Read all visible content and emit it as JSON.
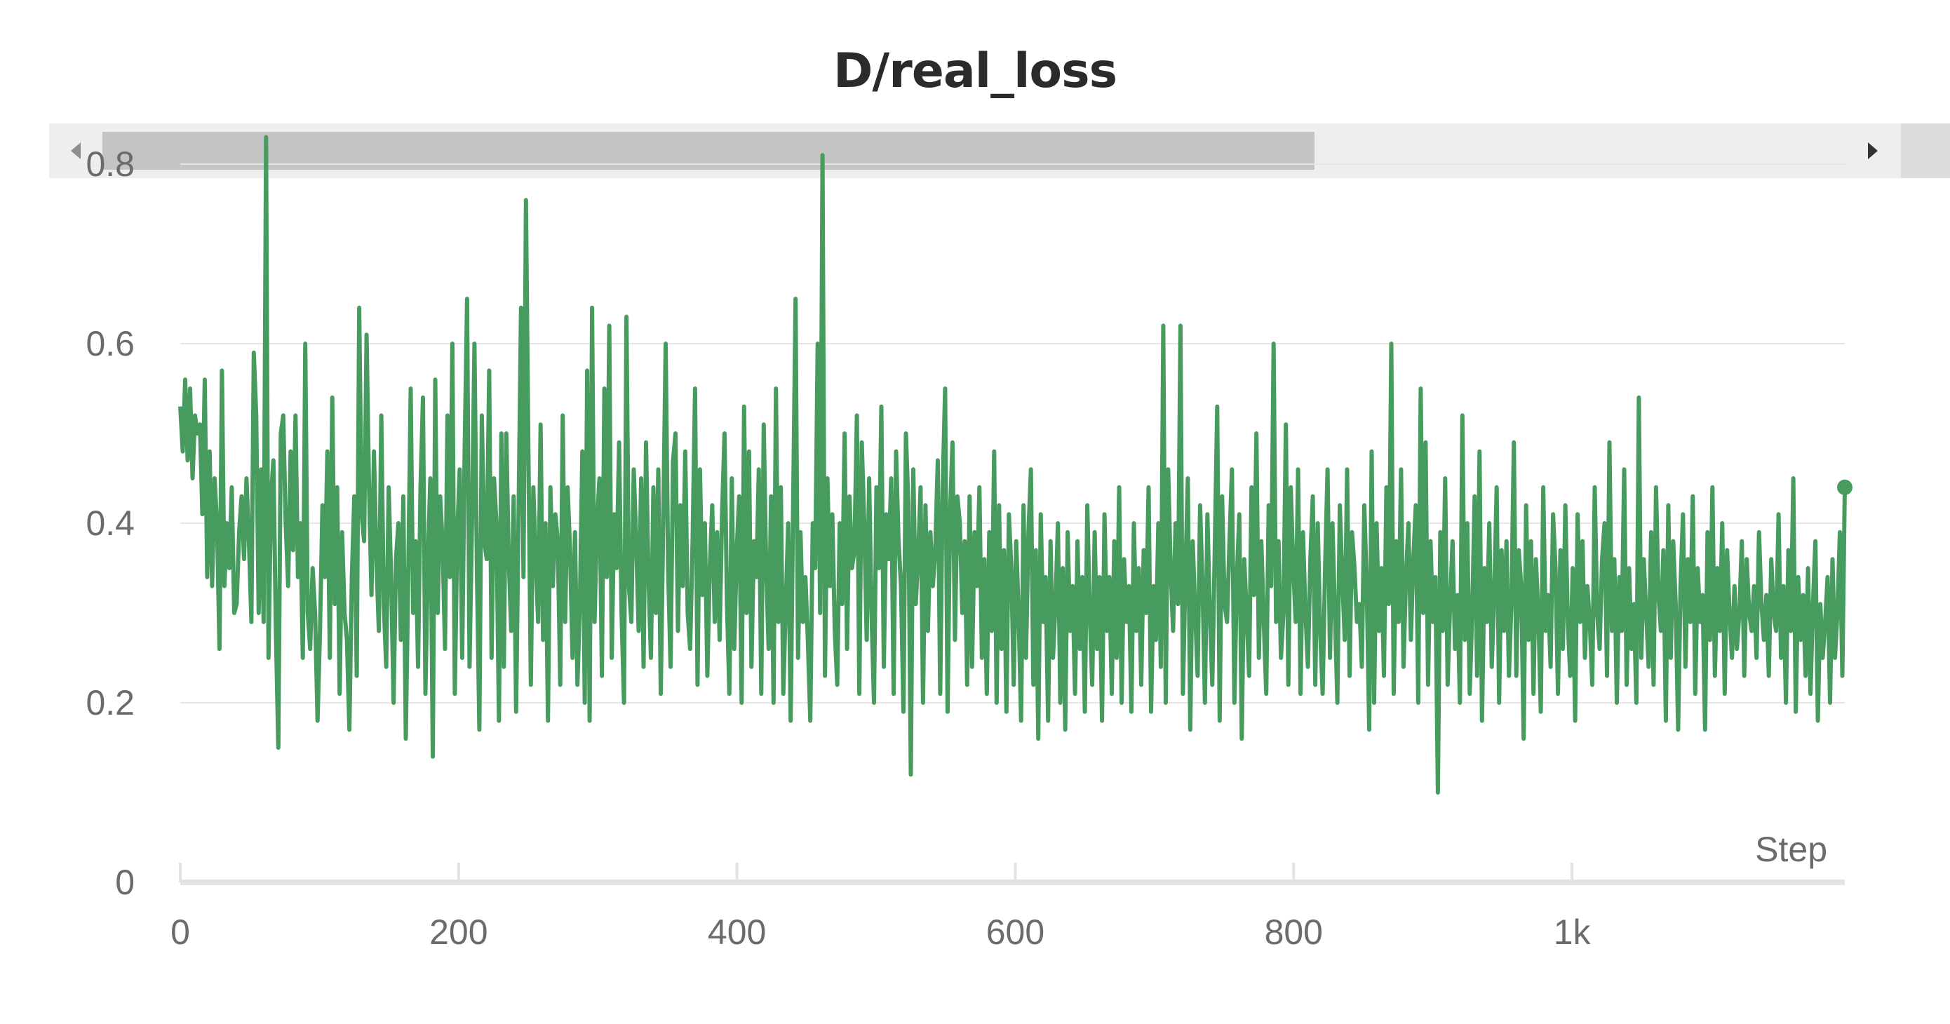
{
  "chart_data": {
    "type": "line",
    "title": "D/real_loss",
    "xlabel": "Step",
    "ylabel": "",
    "xlim": [
      0,
      1196
    ],
    "ylim": [
      0,
      0.85
    ],
    "x_ticks": [
      0,
      200,
      400,
      600,
      800,
      1000
    ],
    "x_tick_labels": [
      "0",
      "200",
      "400",
      "600",
      "800",
      "1k"
    ],
    "y_ticks": [
      0,
      0.2,
      0.4,
      0.6,
      0.8
    ],
    "y_tick_labels": [
      "0",
      "0.2",
      "0.4",
      "0.6",
      "0.8"
    ],
    "grid": true,
    "legend": "none",
    "line_color": "#479b5f",
    "series": [
      {
        "step": 2,
        "x_start": 0,
        "x_end": 1196,
        "values": [
          0.53,
          0.48,
          0.56,
          0.47,
          0.55,
          0.45,
          0.52,
          0.5,
          0.51,
          0.41,
          0.56,
          0.34,
          0.48,
          0.33,
          0.45,
          0.4,
          0.26,
          0.57,
          0.33,
          0.4,
          0.35,
          0.44,
          0.3,
          0.31,
          0.39,
          0.43,
          0.36,
          0.45,
          0.38,
          0.29,
          0.59,
          0.52,
          0.3,
          0.46,
          0.29,
          0.83,
          0.25,
          0.43,
          0.47,
          0.28,
          0.15,
          0.5,
          0.52,
          0.4,
          0.33,
          0.48,
          0.37,
          0.52,
          0.34,
          0.4,
          0.25,
          0.6,
          0.3,
          0.26,
          0.35,
          0.3,
          0.18,
          0.28,
          0.42,
          0.34,
          0.48,
          0.25,
          0.54,
          0.31,
          0.44,
          0.21,
          0.39,
          0.3,
          0.27,
          0.17,
          0.34,
          0.43,
          0.23,
          0.64,
          0.41,
          0.38,
          0.61,
          0.44,
          0.32,
          0.48,
          0.36,
          0.28,
          0.52,
          0.31,
          0.24,
          0.44,
          0.34,
          0.2,
          0.36,
          0.4,
          0.27,
          0.43,
          0.16,
          0.34,
          0.55,
          0.3,
          0.38,
          0.24,
          0.44,
          0.54,
          0.21,
          0.36,
          0.45,
          0.14,
          0.56,
          0.3,
          0.43,
          0.38,
          0.26,
          0.52,
          0.34,
          0.6,
          0.21,
          0.39,
          0.46,
          0.25,
          0.48,
          0.65,
          0.24,
          0.4,
          0.6,
          0.35,
          0.17,
          0.52,
          0.38,
          0.36,
          0.57,
          0.25,
          0.45,
          0.4,
          0.18,
          0.5,
          0.24,
          0.5,
          0.36,
          0.28,
          0.43,
          0.19,
          0.41,
          0.64,
          0.34,
          0.76,
          0.48,
          0.22,
          0.44,
          0.36,
          0.29,
          0.51,
          0.27,
          0.4,
          0.18,
          0.44,
          0.33,
          0.41,
          0.38,
          0.22,
          0.52,
          0.29,
          0.44,
          0.37,
          0.25,
          0.39,
          0.22,
          0.31,
          0.48,
          0.2,
          0.57,
          0.18,
          0.64,
          0.29,
          0.4,
          0.45,
          0.23,
          0.55,
          0.34,
          0.62,
          0.25,
          0.41,
          0.35,
          0.49,
          0.3,
          0.2,
          0.63,
          0.33,
          0.29,
          0.46,
          0.38,
          0.28,
          0.45,
          0.24,
          0.49,
          0.34,
          0.25,
          0.44,
          0.3,
          0.46,
          0.21,
          0.4,
          0.6,
          0.35,
          0.24,
          0.47,
          0.5,
          0.28,
          0.42,
          0.33,
          0.48,
          0.3,
          0.26,
          0.38,
          0.55,
          0.22,
          0.46,
          0.32,
          0.4,
          0.23,
          0.35,
          0.42,
          0.29,
          0.39,
          0.27,
          0.41,
          0.5,
          0.31,
          0.21,
          0.45,
          0.26,
          0.37,
          0.43,
          0.2,
          0.53,
          0.3,
          0.48,
          0.24,
          0.38,
          0.34,
          0.46,
          0.21,
          0.51,
          0.35,
          0.26,
          0.43,
          0.2,
          0.55,
          0.29,
          0.44,
          0.21,
          0.31,
          0.4,
          0.18,
          0.42,
          0.65,
          0.25,
          0.39,
          0.29,
          0.34,
          0.27,
          0.18,
          0.4,
          0.35,
          0.6,
          0.3,
          0.81,
          0.23,
          0.45,
          0.33,
          0.41,
          0.28,
          0.22,
          0.4,
          0.31,
          0.5,
          0.26,
          0.43,
          0.35,
          0.37,
          0.52,
          0.21,
          0.49,
          0.4,
          0.27,
          0.45,
          0.3,
          0.2,
          0.44,
          0.35,
          0.53,
          0.24,
          0.41,
          0.36,
          0.45,
          0.21,
          0.48,
          0.38,
          0.33,
          0.19,
          0.5,
          0.42,
          0.12,
          0.46,
          0.31,
          0.36,
          0.44,
          0.2,
          0.42,
          0.28,
          0.39,
          0.33,
          0.37,
          0.47,
          0.21,
          0.44,
          0.55,
          0.19,
          0.41,
          0.49,
          0.27,
          0.43,
          0.4,
          0.3,
          0.38,
          0.22,
          0.43,
          0.24,
          0.39,
          0.33,
          0.44,
          0.25,
          0.36,
          0.21,
          0.39,
          0.28,
          0.48,
          0.2,
          0.42,
          0.26,
          0.37,
          0.19,
          0.41,
          0.35,
          0.22,
          0.38,
          0.3,
          0.18,
          0.42,
          0.25,
          0.39,
          0.46,
          0.22,
          0.37,
          0.16,
          0.41,
          0.29,
          0.34,
          0.18,
          0.38,
          0.25,
          0.31,
          0.4,
          0.2,
          0.35,
          0.17,
          0.39,
          0.28,
          0.33,
          0.21,
          0.38,
          0.26,
          0.34,
          0.19,
          0.42,
          0.3,
          0.22,
          0.39,
          0.26,
          0.34,
          0.18,
          0.41,
          0.28,
          0.34,
          0.21,
          0.38,
          0.25,
          0.44,
          0.2,
          0.36,
          0.29,
          0.33,
          0.19,
          0.4,
          0.28,
          0.35,
          0.22,
          0.37,
          0.3,
          0.44,
          0.19,
          0.33,
          0.27,
          0.4,
          0.24,
          0.62,
          0.2,
          0.46,
          0.35,
          0.28,
          0.4,
          0.31,
          0.62,
          0.21,
          0.34,
          0.45,
          0.17,
          0.38,
          0.3,
          0.23,
          0.42,
          0.33,
          0.2,
          0.41,
          0.3,
          0.22,
          0.37,
          0.53,
          0.18,
          0.43,
          0.31,
          0.29,
          0.38,
          0.46,
          0.2,
          0.34,
          0.41,
          0.16,
          0.36,
          0.3,
          0.23,
          0.44,
          0.32,
          0.5,
          0.25,
          0.38,
          0.29,
          0.21,
          0.42,
          0.33,
          0.6,
          0.29,
          0.38,
          0.25,
          0.3,
          0.51,
          0.22,
          0.44,
          0.35,
          0.29,
          0.46,
          0.21,
          0.39,
          0.3,
          0.24,
          0.36,
          0.43,
          0.22,
          0.4,
          0.28,
          0.21,
          0.35,
          0.46,
          0.25,
          0.4,
          0.3,
          0.2,
          0.42,
          0.34,
          0.27,
          0.46,
          0.23,
          0.39,
          0.35,
          0.29,
          0.31,
          0.24,
          0.42,
          0.33,
          0.17,
          0.48,
          0.2,
          0.4,
          0.28,
          0.35,
          0.23,
          0.44,
          0.31,
          0.6,
          0.21,
          0.38,
          0.29,
          0.46,
          0.24,
          0.34,
          0.4,
          0.27,
          0.36,
          0.42,
          0.2,
          0.55,
          0.3,
          0.49,
          0.22,
          0.38,
          0.29,
          0.34,
          0.1,
          0.39,
          0.28,
          0.45,
          0.22,
          0.31,
          0.38,
          0.26,
          0.32,
          0.2,
          0.52,
          0.27,
          0.4,
          0.21,
          0.3,
          0.43,
          0.23,
          0.48,
          0.18,
          0.35,
          0.29,
          0.4,
          0.24,
          0.32,
          0.44,
          0.2,
          0.37,
          0.28,
          0.38,
          0.23,
          0.31,
          0.49,
          0.23,
          0.37,
          0.33,
          0.16,
          0.42,
          0.27,
          0.38,
          0.21,
          0.36,
          0.3,
          0.19,
          0.44,
          0.28,
          0.32,
          0.24,
          0.41,
          0.35,
          0.21,
          0.37,
          0.26,
          0.42,
          0.29,
          0.23,
          0.35,
          0.18,
          0.41,
          0.29,
          0.38,
          0.25,
          0.33,
          0.29,
          0.22,
          0.44,
          0.3,
          0.26,
          0.36,
          0.4,
          0.23,
          0.49,
          0.28,
          0.36,
          0.2,
          0.34,
          0.28,
          0.46,
          0.22,
          0.35,
          0.26,
          0.31,
          0.2,
          0.54,
          0.25,
          0.36,
          0.3,
          0.24,
          0.39,
          0.22,
          0.44,
          0.32,
          0.28,
          0.37,
          0.18,
          0.42,
          0.25,
          0.38,
          0.31,
          0.17,
          0.33,
          0.41,
          0.24,
          0.36,
          0.29,
          0.43,
          0.21,
          0.35,
          0.29,
          0.32,
          0.17,
          0.39,
          0.27,
          0.44,
          0.23,
          0.35,
          0.28,
          0.4,
          0.21,
          0.37,
          0.3,
          0.25,
          0.33,
          0.26,
          0.3,
          0.38,
          0.23,
          0.36,
          0.3,
          0.28,
          0.33,
          0.25,
          0.39,
          0.31,
          0.27,
          0.32,
          0.23,
          0.36,
          0.3,
          0.28,
          0.41,
          0.25,
          0.33,
          0.2,
          0.37,
          0.28,
          0.45,
          0.19,
          0.34,
          0.27,
          0.32,
          0.23,
          0.35,
          0.21,
          0.31,
          0.38,
          0.18,
          0.31,
          0.25,
          0.29,
          0.34,
          0.2,
          0.36,
          0.25,
          0.3,
          0.39,
          0.23,
          0.44
        ]
      }
    ],
    "last_point": {
      "x": 1196,
      "y": 0.44
    }
  }
}
